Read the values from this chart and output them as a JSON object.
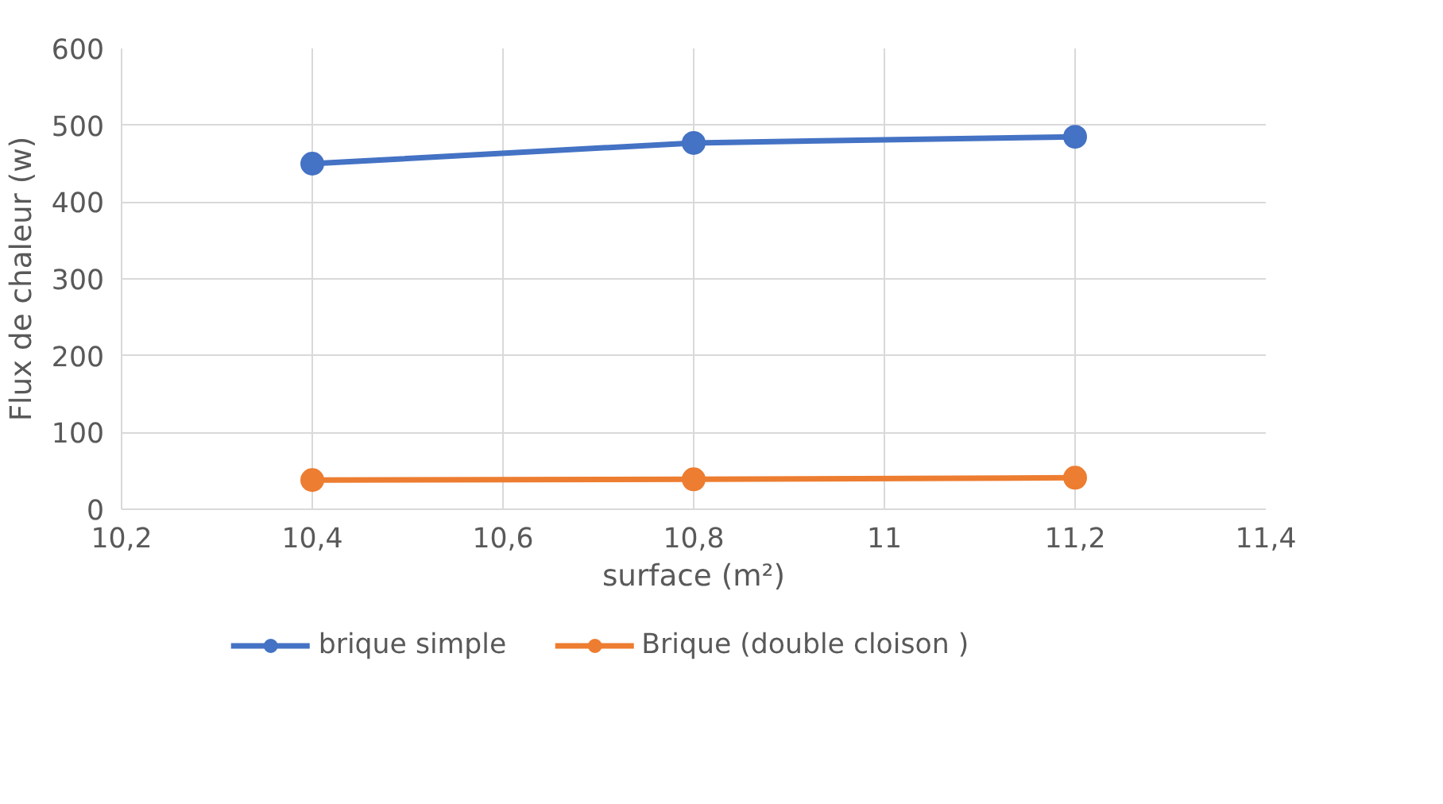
{
  "chart_data": {
    "type": "line",
    "xlabel": "surface (m²)",
    "ylabel": "Flux de chaleur (w)",
    "x": [
      10.4,
      10.8,
      11.2
    ],
    "series": [
      {
        "name": "brique simple",
        "color": "#4472c4",
        "values": [
          450,
          477,
          485
        ]
      },
      {
        "name": "Brique (double cloison )",
        "color": "#ed7d31",
        "values": [
          38,
          39,
          41
        ]
      }
    ],
    "xlim": [
      10.2,
      11.4
    ],
    "xticks": [
      {
        "value": 10.2,
        "label": "10,2"
      },
      {
        "value": 10.4,
        "label": "10,4"
      },
      {
        "value": 10.6,
        "label": "10,6"
      },
      {
        "value": 10.8,
        "label": "10,8"
      },
      {
        "value": 11,
        "label": "11"
      },
      {
        "value": 11.2,
        "label": "11,2"
      },
      {
        "value": 11.4,
        "label": "11,4"
      }
    ],
    "ylim": [
      0,
      600
    ],
    "yticks": [
      0,
      100,
      200,
      300,
      400,
      500,
      600
    ],
    "grid": true,
    "legend": "bottom",
    "marker": "circle",
    "line_style": "solid"
  }
}
